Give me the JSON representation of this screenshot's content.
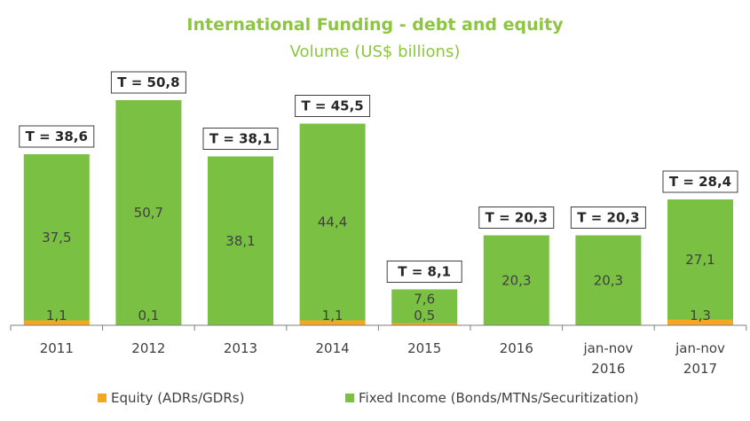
{
  "title": "International Funding - debt and equity",
  "subtitle": "Volume (US$ billions)",
  "colors": {
    "equity": "#f5a623",
    "fixed_income": "#7ac143",
    "title": "#8cc63f"
  },
  "chart_data": {
    "type": "bar",
    "stacked": true,
    "title": "International Funding - debt and equity",
    "subtitle": "Volume (US$ billions)",
    "categories": [
      [
        "2011"
      ],
      [
        "2012"
      ],
      [
        "2013"
      ],
      [
        "2014"
      ],
      [
        "2015"
      ],
      [
        "2016"
      ],
      [
        "jan-nov",
        "2016"
      ],
      [
        "jan-nov",
        "2017"
      ]
    ],
    "series": [
      {
        "name": "Equity (ADRs/GDRs)",
        "color": "#f5a623",
        "values": [
          1.1,
          0.1,
          0.0,
          1.1,
          0.5,
          0.0,
          0.0,
          1.3
        ],
        "labels": [
          "1,1",
          "0,1",
          "",
          "1,1",
          "0,5",
          "",
          "",
          "1,3"
        ]
      },
      {
        "name": "Fixed Income (Bonds/MTNs/Securitization)",
        "color": "#7ac143",
        "values": [
          37.5,
          50.7,
          38.1,
          44.4,
          7.6,
          20.3,
          20.3,
          27.1
        ],
        "labels": [
          "37,5",
          "50,7",
          "38,1",
          "44,4",
          "7,6",
          "20,3",
          "20,3",
          "27,1"
        ]
      }
    ],
    "totals": [
      38.6,
      50.8,
      38.1,
      45.5,
      8.1,
      20.3,
      20.3,
      28.4
    ],
    "total_labels": [
      "T = 38,6",
      "T = 50,8",
      "T = 38,1",
      "T = 45,5",
      "T = 8,1",
      "T = 20,3",
      "T = 20,3",
      "T = 28,4"
    ],
    "legend_position": "bottom",
    "grid": false
  }
}
